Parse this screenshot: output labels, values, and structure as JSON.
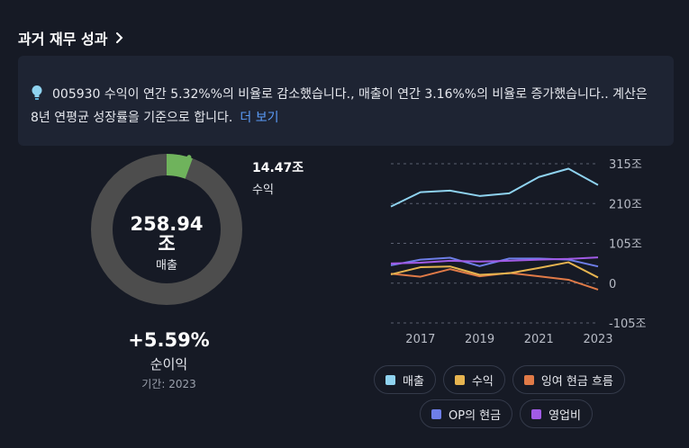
{
  "header": {
    "title": "과거 재무 성과"
  },
  "info": {
    "text": "005930 수익이 연간 5.32%%의 비율로 감소했습니다., 매출이 연간 3.16%%의 비율로 증가했습니다.. 계산은 8년 연평균 성장률을 기준으로 합니다.",
    "more_label": "더 보기"
  },
  "donut": {
    "total_value": "258.94",
    "total_unit": "조",
    "total_label": "매출",
    "earnings_value": "14.47조",
    "earnings_label": "수익",
    "earnings_share": 0.0559,
    "colors": {
      "ring": "#4d4d4d",
      "earnings": "#6fb35c"
    }
  },
  "growth": {
    "value": "+5.59%",
    "label": "순이익",
    "period": "기간: 2023"
  },
  "chart_data": {
    "type": "line",
    "x": [
      2016,
      2017,
      2018,
      2019,
      2020,
      2021,
      2022,
      2023
    ],
    "x_tick_labels": [
      "2017",
      "2019",
      "2021",
      "2023"
    ],
    "x_ticks": [
      2017,
      2019,
      2021,
      2023
    ],
    "y_tick_labels": [
      "315조",
      "210조",
      "105조",
      "0",
      "-105조"
    ],
    "y_ticks": [
      315,
      210,
      105,
      0,
      -105
    ],
    "ylim": [
      -105,
      315
    ],
    "grid": true,
    "series": [
      {
        "name": "매출",
        "color": "#8fd3f0",
        "values": [
          202,
          240,
          244,
          230,
          237,
          280,
          302,
          259
        ]
      },
      {
        "name": "수익",
        "color": "#e6b450",
        "values": [
          23,
          42,
          44,
          22,
          26,
          40,
          55,
          15
        ]
      },
      {
        "name": "잉여 현금 흐름",
        "color": "#e07a47",
        "values": [
          25,
          17,
          37,
          18,
          27,
          18,
          9,
          -17
        ]
      },
      {
        "name": "OP의 현금",
        "color": "#6e7ee8",
        "values": [
          47,
          62,
          67,
          45,
          65,
          65,
          62,
          44
        ]
      },
      {
        "name": "영업비",
        "color": "#a15be6",
        "values": [
          52,
          54,
          59,
          57,
          59,
          62,
          64,
          68
        ]
      }
    ]
  },
  "legend": {
    "row1": [
      {
        "label": "매출",
        "color": "#8fd3f0"
      },
      {
        "label": "수익",
        "color": "#e6b450"
      },
      {
        "label": "잉여 현금 흐름",
        "color": "#e07a47"
      }
    ],
    "row2": [
      {
        "label": "OP의 현금",
        "color": "#6e7ee8"
      },
      {
        "label": "영업비",
        "color": "#a15be6"
      }
    ]
  }
}
